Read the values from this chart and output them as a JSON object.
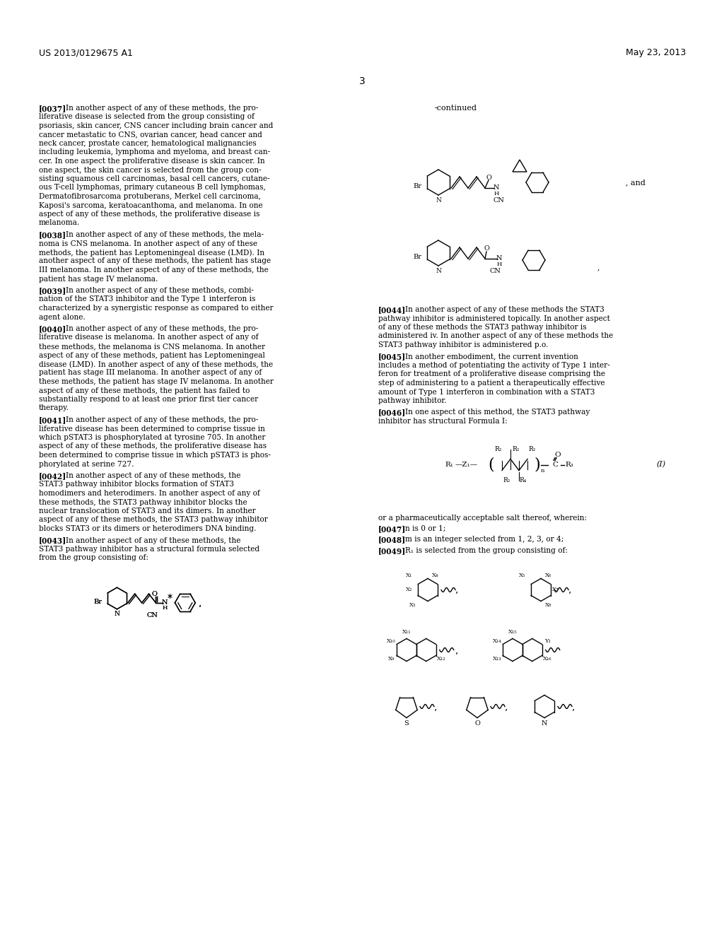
{
  "bg_color": "#ffffff",
  "header_left": "US 2013/0129675 A1",
  "header_right": "May 23, 2013",
  "page_number": "3",
  "continued_label": "-continued",
  "paragraphs": [
    {
      "tag": "[0037]",
      "text": "In another aspect of any of these methods, the pro-liferative disease is selected from the group consisting of psoriasis, skin cancer, CNS cancer including brain cancer and cancer metastatic to CNS, ovarian cancer, head cancer and neck cancer, prostate cancer, hematological malignancies including leukemia, lymphoma and myeloma, and breast can-cer. In one aspect the proliferative disease is skin cancer. In one aspect, the skin cancer is selected from the group consisting squamous cell carcinomas, basal cell cancers, cutaneous T-cell lymphomas, primary cutaneous B cell lymphomas, Dermatofibrosarcoma protuberans, Merkel cell carcinoma, Kaposi's sarcoma, keratoacanthoma, and melanoma. In one aspect of any of these methods, the proliferative disease is melanoma."
    },
    {
      "tag": "[0038]",
      "text": "In another aspect of any of these methods, the melanoma is CNS melanoma. In another aspect of any of these methods, the patient has Leptomeningeal disease (LMD). In another aspect of any of these methods, the patient has stage III melanoma. In another aspect of any of these methods, the patient has stage IV melanoma."
    },
    {
      "tag": "[0039]",
      "text": "In another aspect of any of these methods, combination of the STAT3 inhibitor and the Type 1 interferon is characterized by a synergistic response as compared to either agent alone."
    },
    {
      "tag": "[0040]",
      "text": "In another aspect of any of these methods, the proliferative disease is melanoma. In another aspect of any of these methods, the melanoma is CNS melanoma. In another aspect of any of these methods, patient has Leptomeningeal disease (LMD). In another aspect of any of these methods, the patient has stage III melanoma. In another aspect of any of these methods, the patient has stage IV melanoma. In another aspect of any of these methods, the patient has failed to substantially respond to at least one prior first tier cancer therapy."
    },
    {
      "tag": "[0041]",
      "text": "In another aspect of any of these methods, the proliferative disease has been determined to comprise tissue in which pSTAT3 is phosphorylated at tyrosine 705. In another aspect of any of these methods, the proliferative disease has been determined to comprise tissue in which pSTAT3 is phosphorylated at serine 727."
    },
    {
      "tag": "[0042]",
      "text": "In another aspect of any of these methods, the STAT3 pathway inhibitor blocks formation of STAT3 homodimers and heterodimers. In another aspect of any of these methods, the STAT3 pathway inhibitor blocks the nuclear translocation of STAT3 and its dimers. In another aspect of any of these methods, the STAT3 pathway inhibitor blocks STAT3 or its dimers or heterodimers DNA binding."
    },
    {
      "tag": "[0043]",
      "text": "In another aspect of any of these methods, the STAT3 pathway inhibitor has a structural formula selected from the group consisting of:"
    },
    {
      "tag": "[0044]",
      "text": "In another aspect of any of these methods the STAT3 pathway inhibitor is administered topically. In another aspect of any of these methods the STAT3 pathway inhibitor is administered iv. In another aspect of any of these methods the STAT3 pathway inhibitor is administered p.o."
    },
    {
      "tag": "[0045]",
      "text": "In another embodiment, the current invention includes a method of potentiating the activity of Type 1 interferon for treatment of a proliferative disease comprising the step of administering to a patient a therapeutically effective amount of Type 1 interferon in combination with a STAT3 pathway inhibitor."
    },
    {
      "tag": "[0046]",
      "text": "In one aspect of this method, the STAT3 pathway inhibitor has structural Formula I:"
    },
    {
      "tag": "[0047]",
      "text": "n is 0 or 1;"
    },
    {
      "tag": "[0048]",
      "text": "m is an integer selected from 1, 2, 3, or 4;"
    },
    {
      "tag": "[0049]",
      "text": "R₁ is selected from the group consisting of:"
    }
  ],
  "right_col_paragraphs": [
    {
      "tag": "[0044]",
      "text": "In another aspect of any of these methods the STAT3 pathway inhibitor is administered topically. In another aspect of any of these methods the STAT3 pathway inhibitor is administered iv. In another aspect of any of these methods the STAT3 pathway inhibitor is administered p.o."
    },
    {
      "tag": "[0045]",
      "text": "In another embodiment, the current invention includes a method of potentiating the activity of Type 1 interferon for treatment of a proliferative disease comprising the step of administering to a patient a therapeutically effective amount of Type 1 interferon in combination with a STAT3 pathway inhibitor."
    },
    {
      "tag": "[0046]",
      "text": "In one aspect of this method, the STAT3 pathway inhibitor has structural Formula I:"
    }
  ]
}
